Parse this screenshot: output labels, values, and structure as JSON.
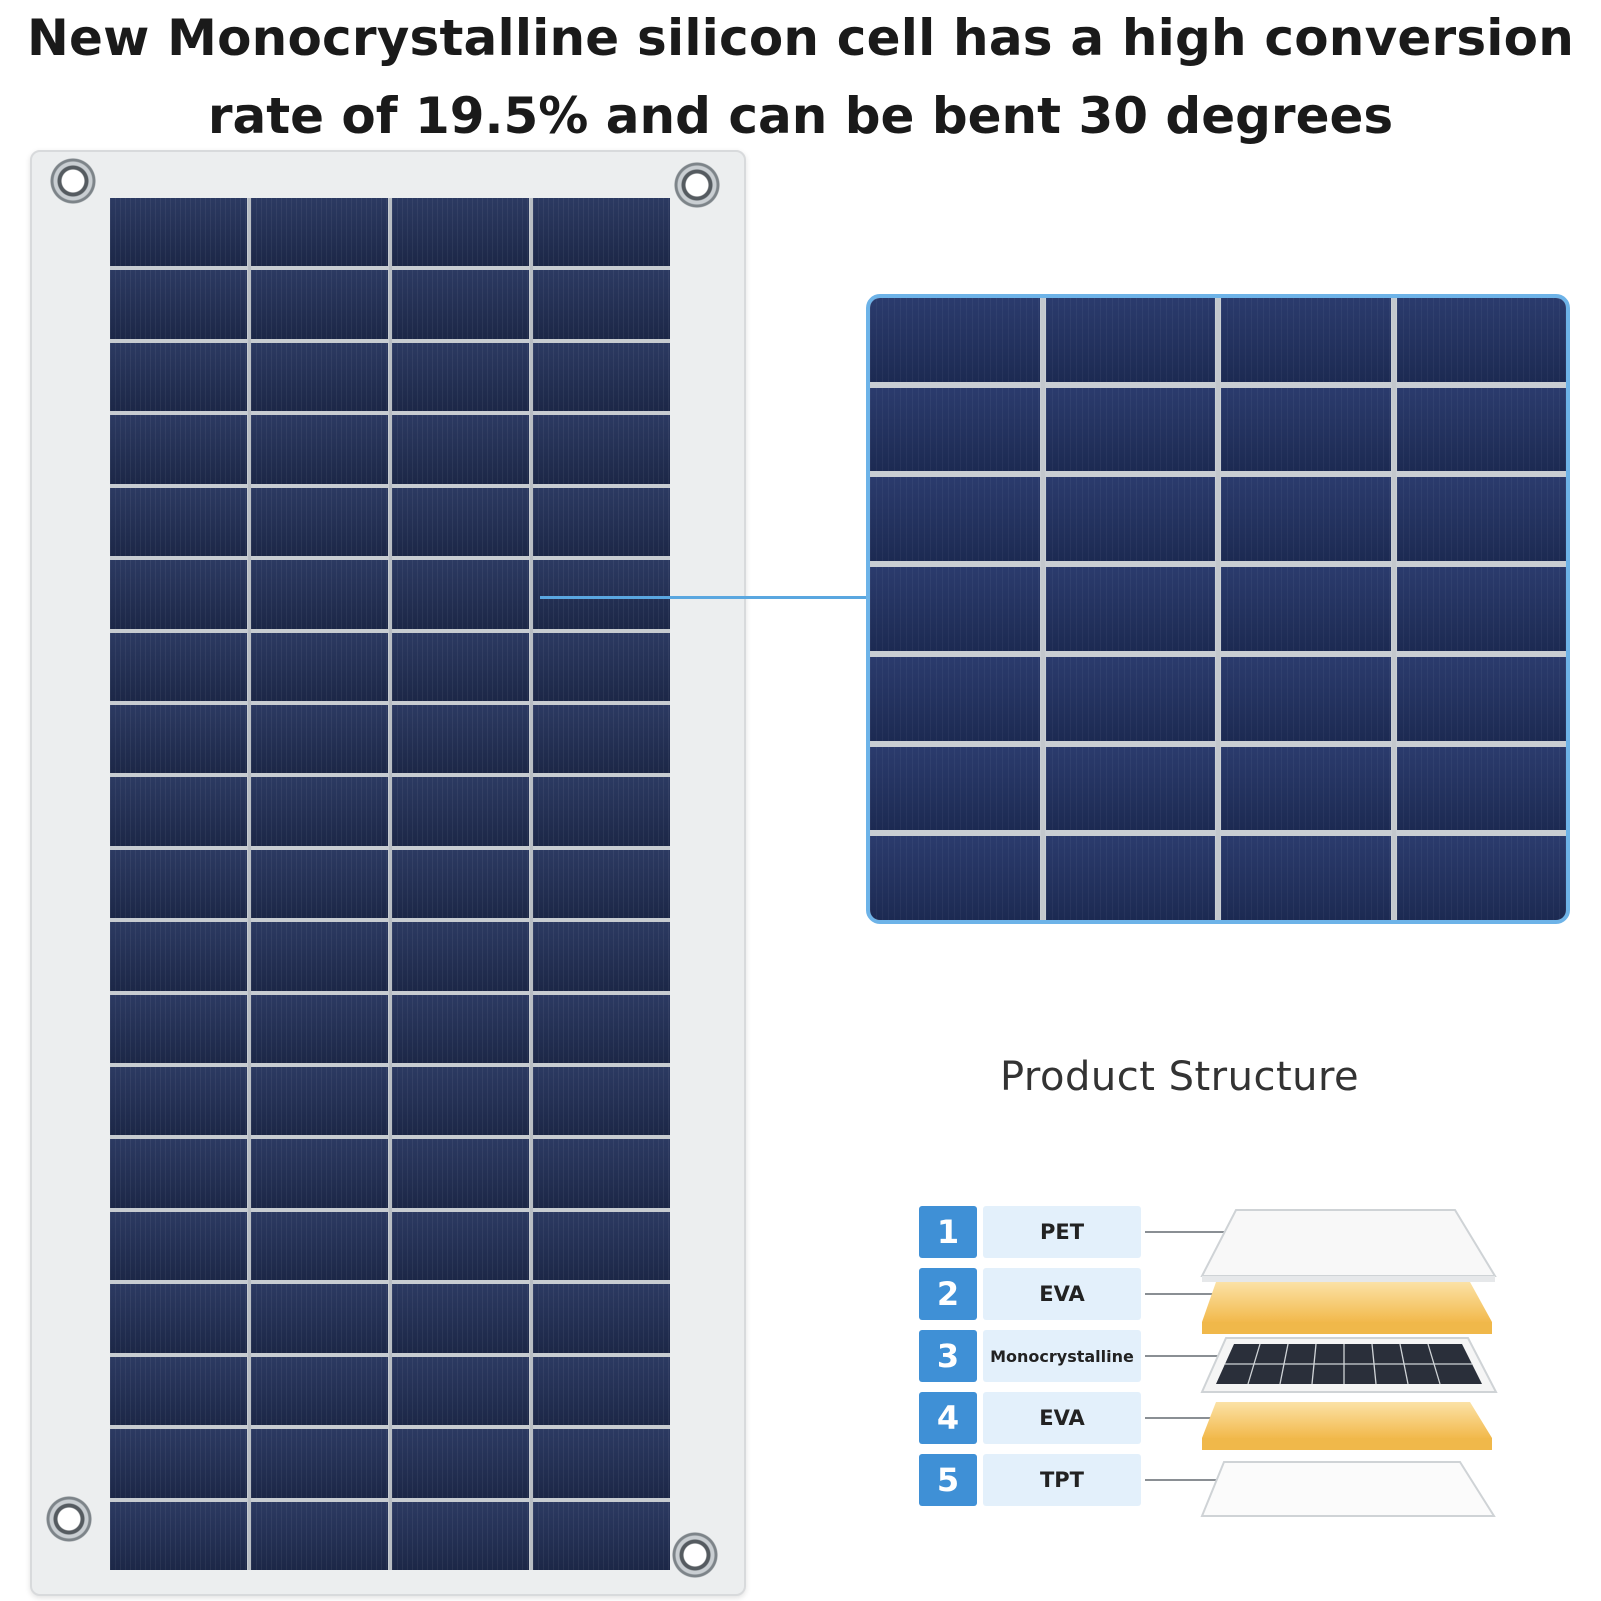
{
  "headline": {
    "line1": "New Monocrystalline silicon cell has a high conversion",
    "line2": "rate of 19.5% and can be bent 30 degrees"
  },
  "structure": {
    "title": "Product Structure",
    "layers": [
      {
        "number": "1",
        "name": "PET"
      },
      {
        "number": "2",
        "name": "EVA"
      },
      {
        "number": "3",
        "name": "Monocrystalline"
      },
      {
        "number": "4",
        "name": "EVA"
      },
      {
        "number": "5",
        "name": "TPT"
      }
    ]
  },
  "colors": {
    "cell": "#1f2b50",
    "accent_blue": "#3f90d6",
    "label_bg": "#e3f0fb",
    "eva_yellow": "#f6c85f"
  }
}
